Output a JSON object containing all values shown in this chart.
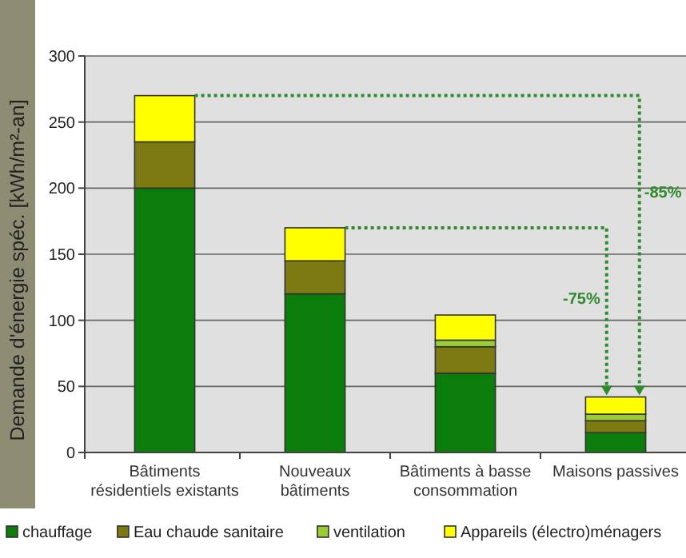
{
  "chart_data": {
    "type": "bar",
    "stacked": true,
    "ylabel": "Demande d'énergie spéc. [kWh/m²-an]",
    "categories": [
      "Bâtiments résidentiels existants",
      "Nouveaux bâtiments",
      "Bâtiments à basse consommation",
      "Maisons passives"
    ],
    "series": [
      {
        "name": "chauffage",
        "color": "#0b7d0b",
        "values": [
          200,
          120,
          60,
          15
        ]
      },
      {
        "name": "Eau chaude sanitaire",
        "color": "#7d7a12",
        "values": [
          35,
          25,
          20,
          9
        ]
      },
      {
        "name": "ventilation",
        "color": "#9acd32",
        "values": [
          0,
          0,
          5,
          5
        ]
      },
      {
        "name": "Appareils (électro)ménagers",
        "color": "#ffff00",
        "values": [
          35,
          25,
          19,
          13
        ]
      }
    ],
    "ylim": [
      0,
      300
    ],
    "yticks": [
      0,
      50,
      100,
      150,
      200,
      250,
      300
    ],
    "grid": "y",
    "legend": "bottom",
    "annotations": [
      "-85%",
      "-75%"
    ]
  }
}
